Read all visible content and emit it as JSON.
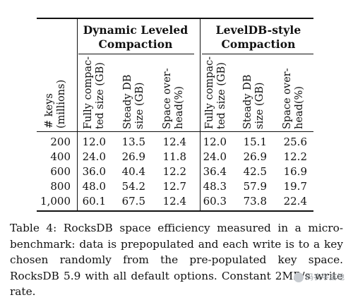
{
  "table": {
    "groups": [
      {
        "title_line1": "Dynamic Leveled",
        "title_line2": "Compaction"
      },
      {
        "title_line1": "LevelDB-style",
        "title_line2": "Compaction"
      }
    ],
    "key_header": [
      "# keys",
      "(millions)"
    ],
    "col_headers": [
      [
        "Fully compac-",
        "ted size (GB)"
      ],
      [
        "Steady DB",
        "size (GB)"
      ],
      [
        "Space over-",
        "head(%)"
      ],
      [
        "Fully compac-",
        "ted size (GB)"
      ],
      [
        "Steady DB",
        "size (GB)"
      ],
      [
        "Space over-",
        "head(%)"
      ]
    ],
    "rows": [
      {
        "keys": "200",
        "values": [
          "12.0",
          "13.5",
          "12.4",
          "12.0",
          "15.1",
          "25.6"
        ]
      },
      {
        "keys": "400",
        "values": [
          "24.0",
          "26.9",
          "11.8",
          "24.0",
          "26.9",
          "12.2"
        ]
      },
      {
        "keys": "600",
        "values": [
          "36.0",
          "40.4",
          "12.2",
          "36.4",
          "42.5",
          "16.9"
        ]
      },
      {
        "keys": "800",
        "values": [
          "48.0",
          "54.2",
          "12.7",
          "48.3",
          "57.9",
          "19.7"
        ]
      },
      {
        "keys": "1,000",
        "values": [
          "60.1",
          "67.5",
          "12.4",
          "60.3",
          "73.8",
          "22.4"
        ]
      }
    ]
  },
  "caption": "Table 4: RocksDB space efficiency measured in a micro-benchmark: data is prepopulated and each write is to a key chosen randomly from the pre-populated key space. RocksDB 5.9 with all default options. Constant 2MB/s write rate.",
  "watermark": "码农半亩地"
}
